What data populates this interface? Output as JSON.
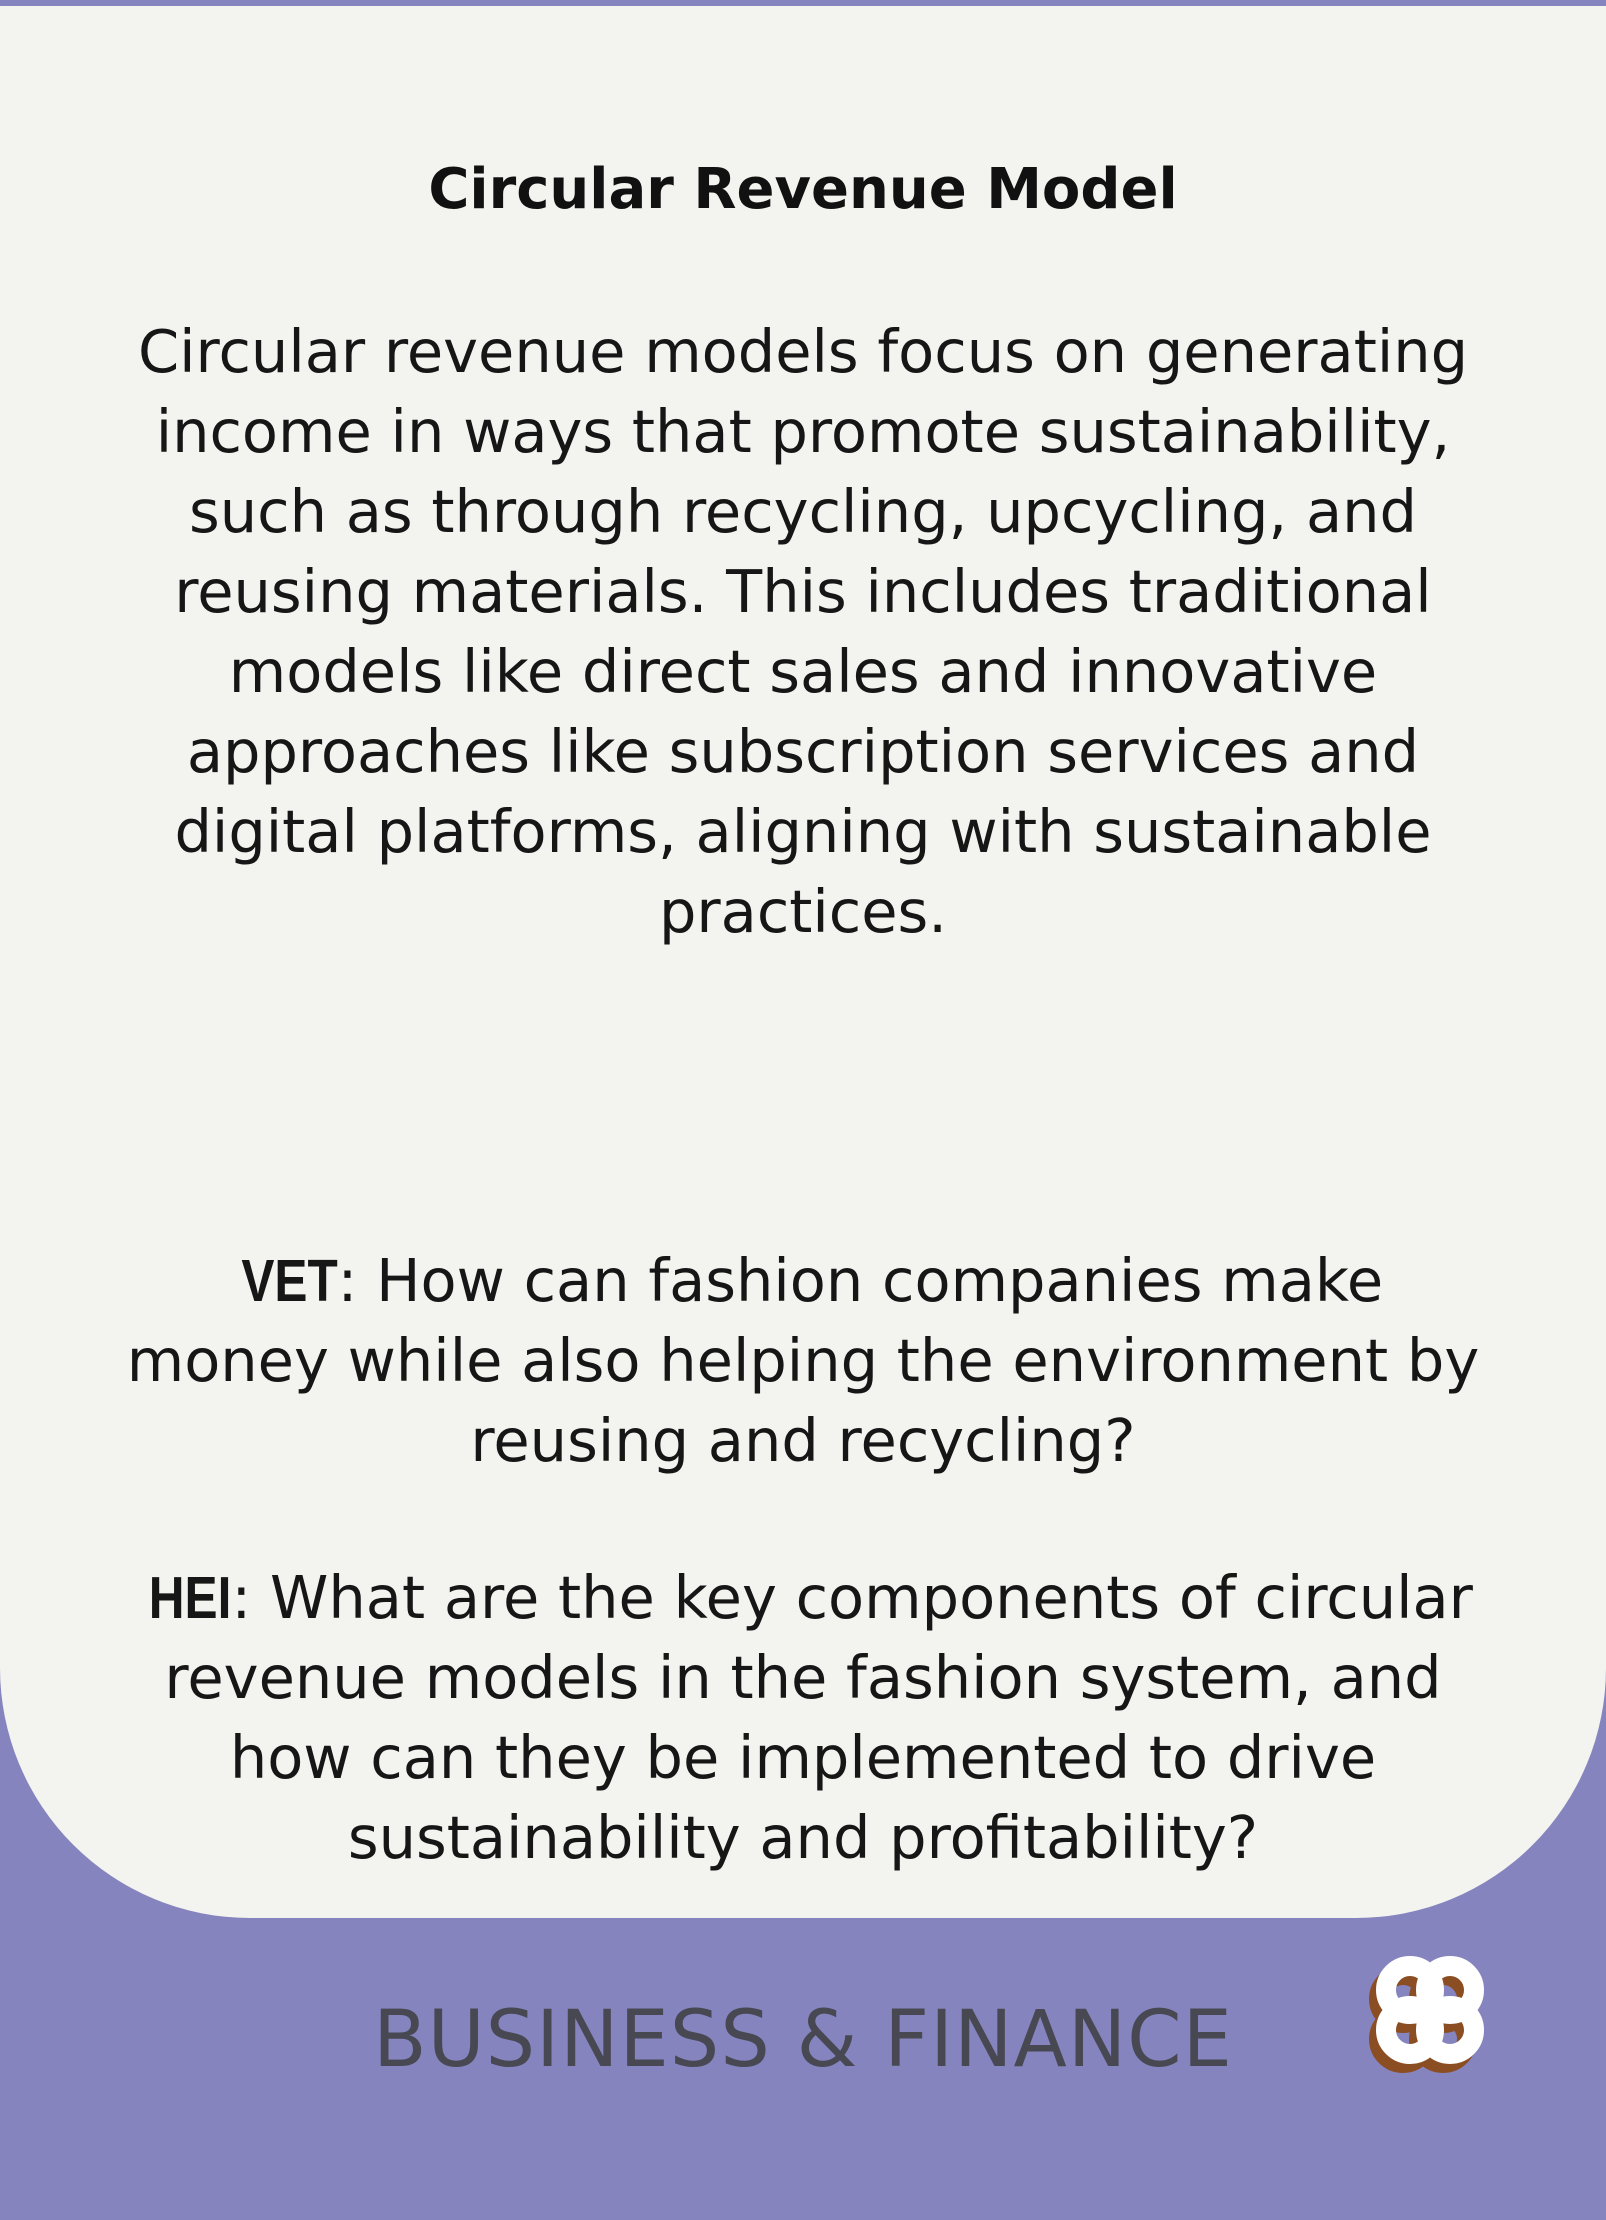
{
  "card": {
    "title": "Circular Revenue Model",
    "description": "Circular revenue models focus on generating income in ways that promote sustainability, such as through recycling, upcycling, and reusing materials. This includes traditional models like direct sales and innovative approaches like subscription services and digital platforms, aligning with sustainable practices.",
    "questions": [
      {
        "tag": "VET",
        "text": ": How can fashion companies make money while also helping the environment by reusing and recycling?"
      },
      {
        "tag": "HEI",
        "text": ": What are the key components of circular revenue models in the fashion system, and how can they be implemented to drive sustainability and profitability?"
      }
    ]
  },
  "footer": {
    "category": "BUSINESS & FINANCE",
    "logo_icon": "quatrefoil-logo-icon"
  },
  "colors": {
    "background": "#8584bf",
    "card": "#f3f3ef",
    "text": "#161616",
    "category_text": "#474852",
    "logo_front": "#ffffff",
    "logo_shadow": "#8a4e22"
  }
}
